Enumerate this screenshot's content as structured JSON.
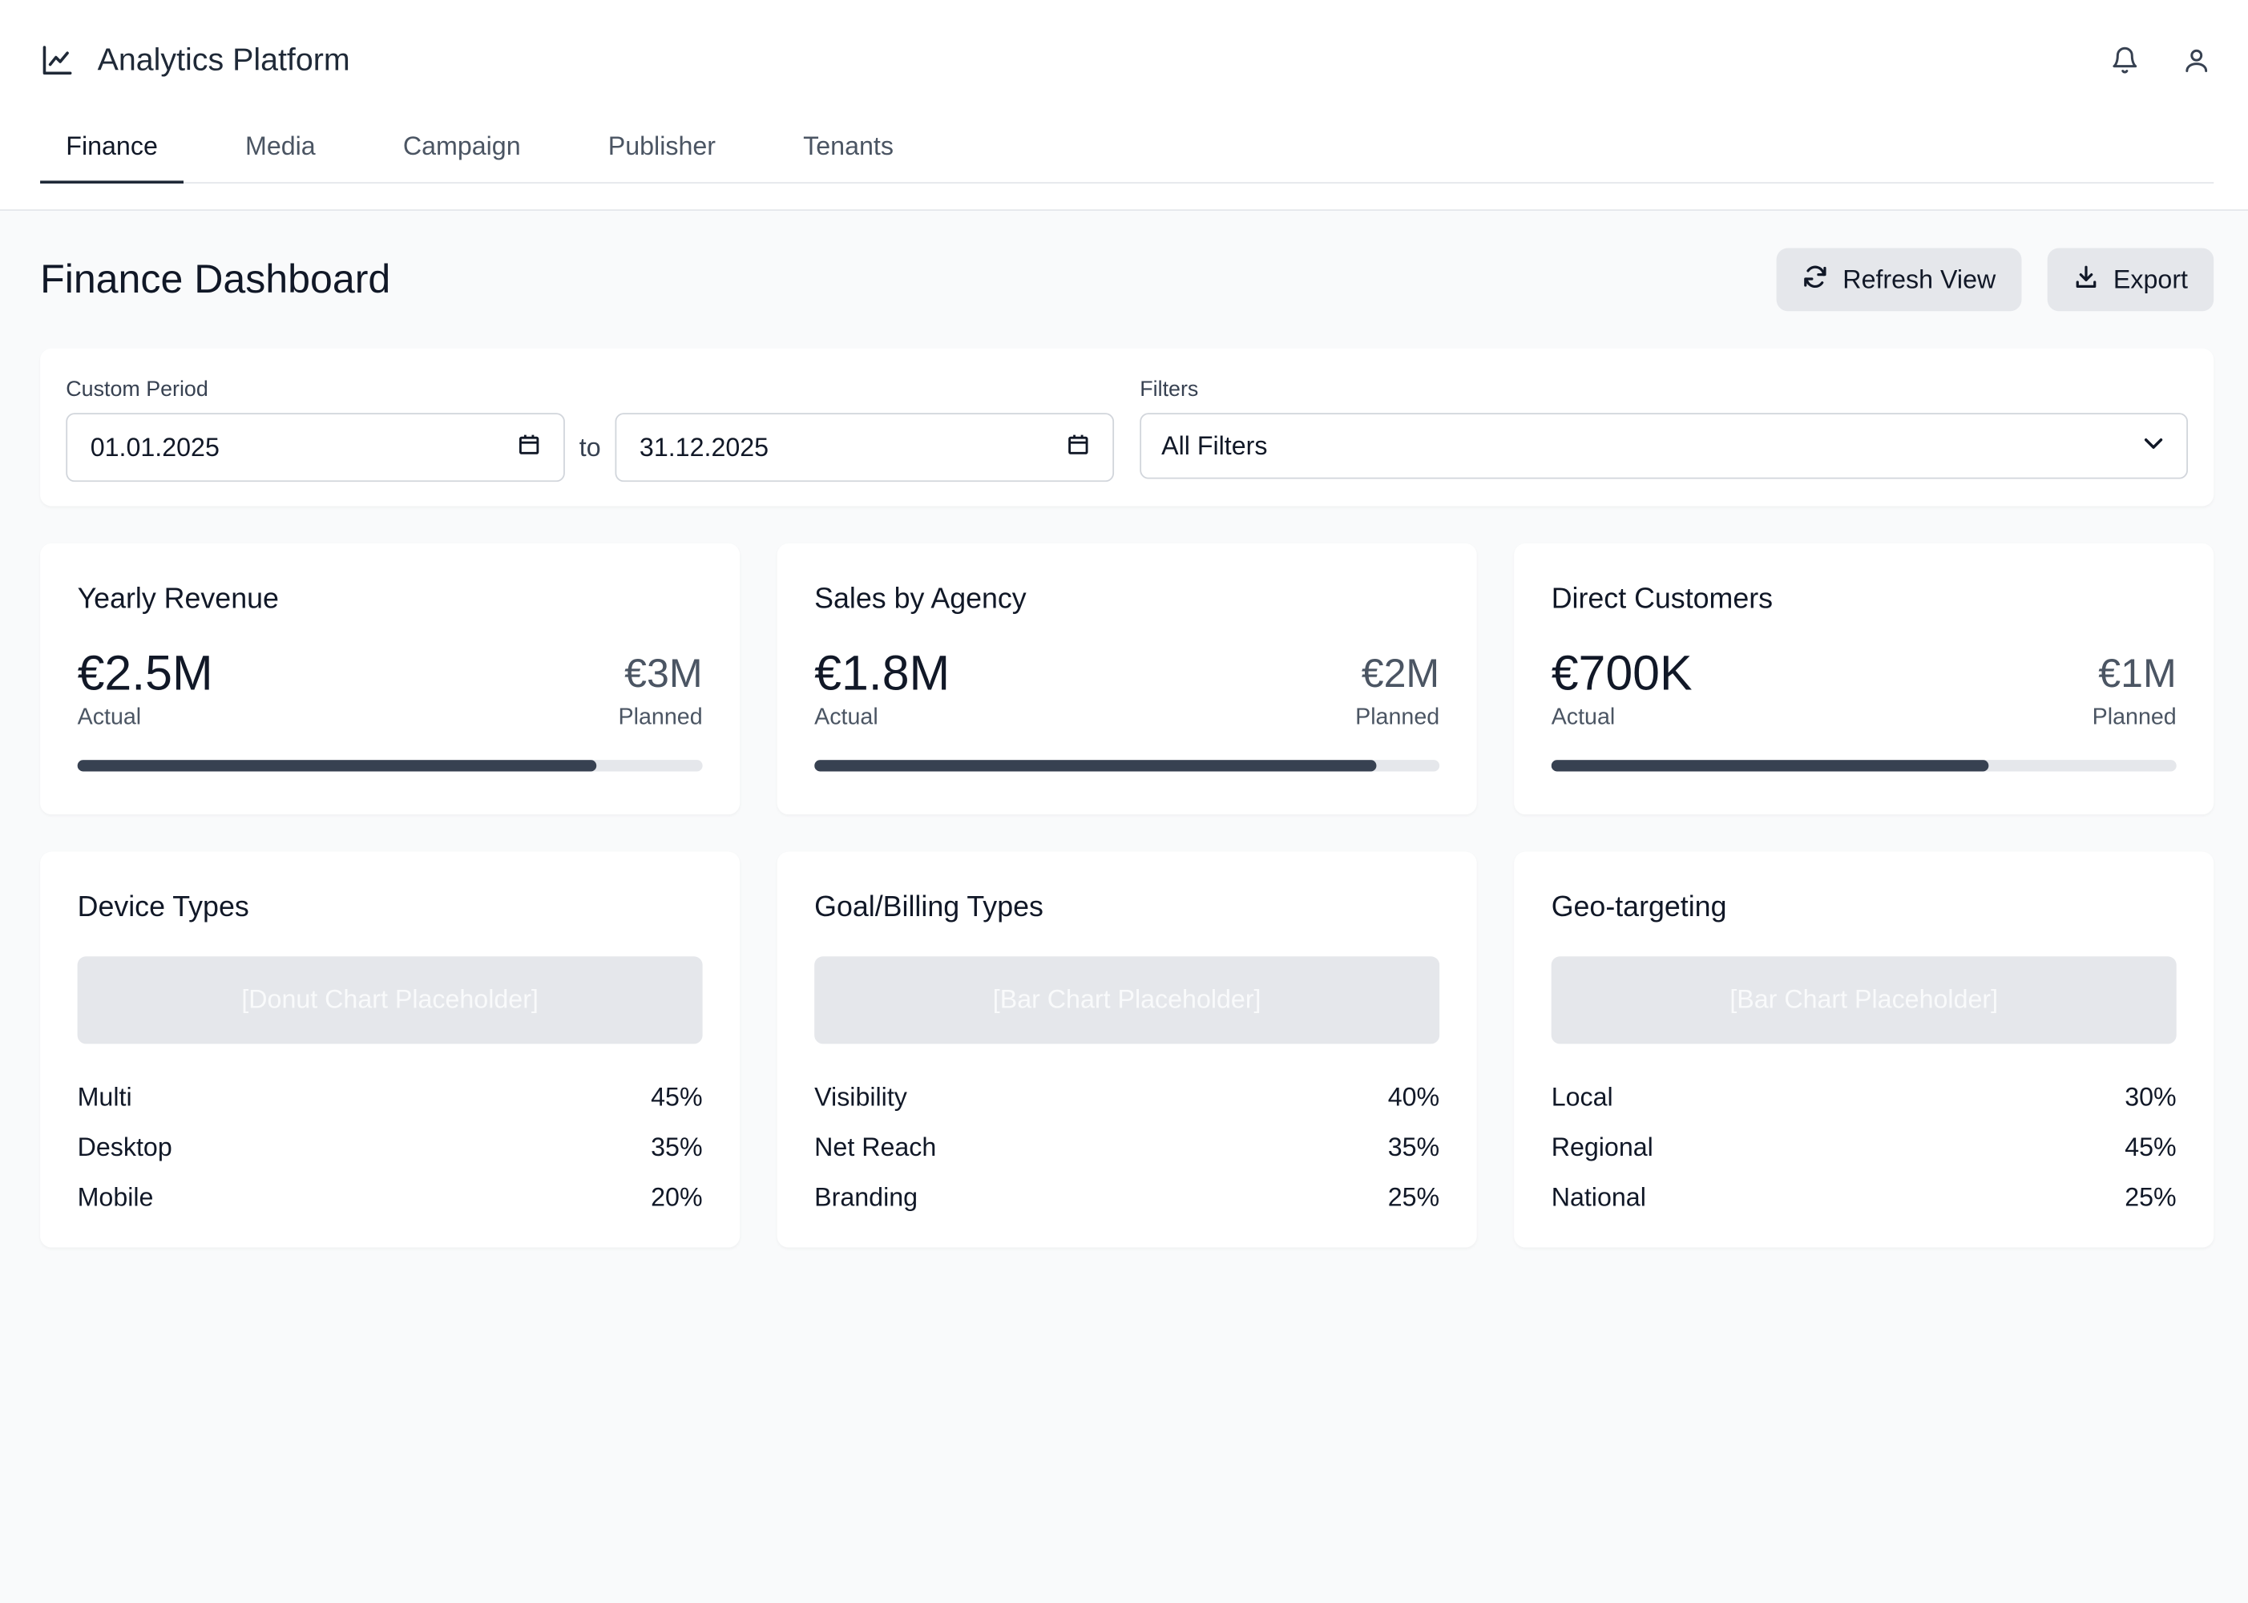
{
  "app": {
    "title": "Analytics Platform",
    "brand_icon": "chart-line-icon",
    "notifications_icon": "bell-icon",
    "user_icon": "user-icon"
  },
  "tabs": [
    {
      "label": "Finance",
      "active": true
    },
    {
      "label": "Media",
      "active": false
    },
    {
      "label": "Campaign",
      "active": false
    },
    {
      "label": "Publisher",
      "active": false
    },
    {
      "label": "Tenants",
      "active": false
    }
  ],
  "page": {
    "title": "Finance Dashboard",
    "refresh_label": "Refresh View",
    "export_label": "Export"
  },
  "filters": {
    "period_label": "Custom Period",
    "start_date": "01.01.2025",
    "to_label": "to",
    "end_date": "31.12.2025",
    "filters_label": "Filters",
    "filters_value": "All Filters"
  },
  "kpis": [
    {
      "title": "Yearly Revenue",
      "actual": "€2.5M",
      "actual_label": "Actual",
      "planned": "€3M",
      "planned_label": "Planned",
      "progress": 0.83
    },
    {
      "title": "Sales by Agency",
      "actual": "€1.8M",
      "actual_label": "Actual",
      "planned": "€2M",
      "planned_label": "Planned",
      "progress": 0.9
    },
    {
      "title": "Direct Customers",
      "actual": "€700K",
      "actual_label": "Actual",
      "planned": "€1M",
      "planned_label": "Planned",
      "progress": 0.7
    }
  ],
  "breakdowns": [
    {
      "title": "Device Types",
      "placeholder": "[Donut Chart Placeholder]",
      "rows": [
        {
          "label": "Multi",
          "value": "45%"
        },
        {
          "label": "Desktop",
          "value": "35%"
        },
        {
          "label": "Mobile",
          "value": "20%"
        }
      ]
    },
    {
      "title": "Goal/Billing Types",
      "placeholder": "[Bar Chart Placeholder]",
      "rows": [
        {
          "label": "Visibility",
          "value": "40%"
        },
        {
          "label": "Net Reach",
          "value": "35%"
        },
        {
          "label": "Branding",
          "value": "25%"
        }
      ]
    },
    {
      "title": "Geo-targeting",
      "placeholder": "[Bar Chart Placeholder]",
      "rows": [
        {
          "label": "Local",
          "value": "30%"
        },
        {
          "label": "Regional",
          "value": "45%"
        },
        {
          "label": "National",
          "value": "25%"
        }
      ]
    }
  ]
}
